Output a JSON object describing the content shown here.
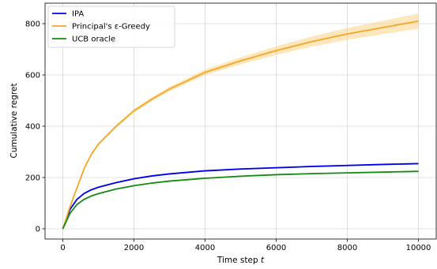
{
  "chart_data": {
    "type": "line",
    "title": "",
    "xlabel": "Time step",
    "xlabel_var": "t",
    "ylabel": "Cumulative regret",
    "xlim": [
      -500,
      10500
    ],
    "ylim": [
      -40,
      880
    ],
    "xticks": [
      0,
      2000,
      4000,
      6000,
      8000,
      10000
    ],
    "xtick_labels": [
      "0",
      "2000",
      "4000",
      "6000",
      "8000",
      "10000"
    ],
    "yticks": [
      0,
      200,
      400,
      600,
      800
    ],
    "ytick_labels": [
      "0",
      "200",
      "400",
      "600",
      "800"
    ],
    "grid": true,
    "legend_position": "top-left",
    "x": [
      0,
      200,
      400,
      600,
      800,
      1000,
      1500,
      2000,
      2500,
      3000,
      4000,
      5000,
      6000,
      7000,
      8000,
      9000,
      10000
    ],
    "series": [
      {
        "name": "IPA",
        "color": "#0000ee",
        "values": [
          0,
          75,
          115,
          138,
          152,
          162,
          180,
          195,
          206,
          214,
          226,
          233,
          238,
          243,
          247,
          251,
          254
        ],
        "band": 3
      },
      {
        "name": "Principal's ε-Greedy",
        "color": "#f5a623",
        "band_color": "#fbd48a",
        "values": [
          0,
          85,
          160,
          235,
          290,
          330,
          400,
          460,
          505,
          545,
          610,
          655,
          695,
          730,
          760,
          785,
          810
        ],
        "band": [
          0,
          2,
          3,
          4,
          5,
          5,
          6,
          7,
          8,
          9,
          11,
          14,
          17,
          20,
          23,
          26,
          30
        ]
      },
      {
        "name": "UCB oracle",
        "color": "#138a13",
        "values": [
          0,
          60,
          95,
          115,
          128,
          137,
          155,
          168,
          178,
          186,
          197,
          205,
          211,
          215,
          218,
          221,
          224
        ],
        "band": 2
      }
    ]
  }
}
